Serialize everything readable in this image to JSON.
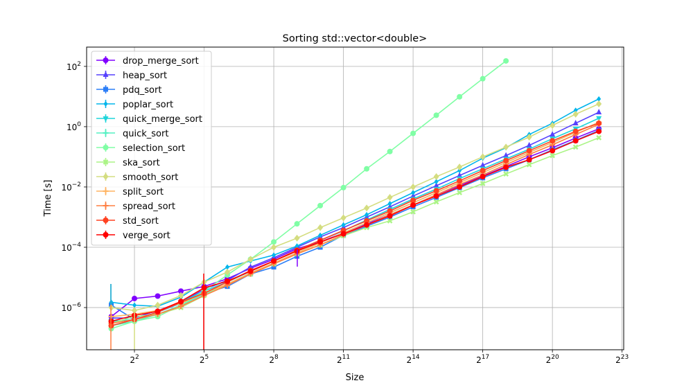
{
  "chart_data": {
    "type": "line",
    "title": "Sorting std::vector<double>",
    "xlabel": "Size",
    "ylabel": "Time [s]",
    "xscale": "log2",
    "yscale": "log10",
    "xlim_log2": [
      -0.06,
      23.07
    ],
    "ylim_log10": [
      -7.4,
      2.64
    ],
    "grid": true,
    "legend_position": "upper left",
    "x_ticks": [
      {
        "exp": 2,
        "label": "2^2"
      },
      {
        "exp": 5,
        "label": "2^5"
      },
      {
        "exp": 8,
        "label": "2^8"
      },
      {
        "exp": 11,
        "label": "2^11"
      },
      {
        "exp": 14,
        "label": "2^14"
      },
      {
        "exp": 17,
        "label": "2^17"
      },
      {
        "exp": 20,
        "label": "2^20"
      },
      {
        "exp": 23,
        "label": "2^23"
      }
    ],
    "y_ticks": [
      {
        "exp": -6,
        "label": "10^-6"
      },
      {
        "exp": -4,
        "label": "10^-4"
      },
      {
        "exp": -2,
        "label": "10^-2"
      },
      {
        "exp": 0,
        "label": "10^0"
      },
      {
        "exp": 2,
        "label": "10^2"
      }
    ],
    "x": [
      2,
      4,
      8,
      16,
      32,
      64,
      128,
      256,
      512,
      1024,
      2048,
      4096,
      8192,
      16384,
      32768,
      65536,
      131072,
      262144,
      524288,
      1048576,
      2097152,
      4194304
    ],
    "series": [
      {
        "name": "drop_merge_sort",
        "color": "#8000ff",
        "marker": "circle",
        "values": [
          5e-07,
          2e-06,
          2.4e-06,
          3.5e-06,
          5e-06,
          9e-06,
          2e-05,
          4e-05,
          9e-05,
          0.00015,
          0.0003,
          0.0006,
          0.0012,
          0.0025,
          0.0055,
          0.011,
          0.023,
          0.048,
          0.1,
          0.2,
          0.42,
          0.85
        ]
      },
      {
        "name": "heap_sort",
        "color": "#5641fd",
        "marker": "triangle",
        "values": [
          4.5e-07,
          4.5e-07,
          8e-07,
          1.5e-06,
          4e-06,
          8e-06,
          2.2e-05,
          4.5e-05,
          0.0001,
          0.00022,
          0.00045,
          0.001,
          0.0022,
          0.005,
          0.011,
          0.024,
          0.052,
          0.11,
          0.24,
          0.55,
          1.3,
          3.0
        ]
      },
      {
        "name": "pdq_sort",
        "color": "#2c7ef7",
        "marker": "square",
        "values": [
          1.2e-06,
          4e-07,
          7e-07,
          1.4e-06,
          3e-06,
          5e-06,
          1.3e-05,
          2.2e-05,
          5e-05,
          0.0001,
          0.00025,
          0.0005,
          0.001,
          0.0022,
          0.0045,
          0.0095,
          0.02,
          0.04,
          0.08,
          0.17,
          0.35,
          0.75
        ]
      },
      {
        "name": "poplar_sort",
        "color": "#00b5eb",
        "marker": "diamond-thin",
        "values": [
          1.5e-06,
          1.2e-06,
          1.1e-06,
          2.2e-06,
          7e-06,
          2.2e-05,
          3.5e-05,
          5.5e-05,
          0.00011,
          0.00025,
          0.00055,
          0.0012,
          0.0028,
          0.0065,
          0.015,
          0.035,
          0.09,
          0.2,
          0.55,
          1.3,
          3.5,
          8.3
        ]
      },
      {
        "name": "quick_merge_sort",
        "color": "#1ed5db",
        "marker": "triangle-down",
        "values": [
          3.5e-07,
          4e-07,
          7e-07,
          1.5e-06,
          3.5e-06,
          7e-06,
          1.6e-05,
          3.5e-05,
          8e-05,
          0.00017,
          0.00035,
          0.0008,
          0.0018,
          0.004,
          0.0085,
          0.019,
          0.04,
          0.085,
          0.18,
          0.4,
          0.85,
          1.9
        ]
      },
      {
        "name": "quick_sort",
        "color": "#52f0c2",
        "marker": "plus",
        "values": [
          2.5e-07,
          3.5e-07,
          6e-07,
          1.2e-06,
          2.8e-06,
          6e-06,
          1.4e-05,
          3e-05,
          6.5e-05,
          0.00014,
          0.0003,
          0.00065,
          0.0014,
          0.003,
          0.0065,
          0.014,
          0.03,
          0.065,
          0.14,
          0.3,
          0.65,
          1.4
        ]
      },
      {
        "name": "selection_sort",
        "color": "#80fea5",
        "marker": "circle",
        "values": [
          2e-07,
          3.5e-07,
          5e-07,
          1.2e-06,
          3.5e-06,
          1.2e-05,
          4e-05,
          0.00015,
          0.0006,
          0.0024,
          0.0095,
          0.04,
          0.15,
          0.6,
          2.4,
          9.8,
          39.0,
          152.0
        ]
      },
      {
        "name": "ska_sort",
        "color": "#abf486",
        "marker": "x",
        "values": [
          3e-07,
          5e-07,
          6e-07,
          1e-06,
          2.5e-06,
          6e-06,
          1.3e-05,
          2.8e-05,
          6e-05,
          0.00012,
          0.00024,
          0.00045,
          0.00075,
          0.0015,
          0.0032,
          0.0065,
          0.013,
          0.027,
          0.055,
          0.11,
          0.21,
          0.43
        ]
      },
      {
        "name": "smooth_sort",
        "color": "#d4dd80",
        "marker": "diamond",
        "values": [
          1e-06,
          8e-07,
          1.2e-06,
          2.5e-06,
          7e-06,
          1.5e-05,
          4e-05,
          0.0001,
          0.0002,
          0.00045,
          0.00095,
          0.002,
          0.0045,
          0.01,
          0.022,
          0.046,
          0.1,
          0.21,
          0.45,
          1.1,
          2.6,
          5.7
        ]
      },
      {
        "name": "split_sort",
        "color": "#ffb360",
        "marker": "plus",
        "values": [
          5e-07,
          6e-07,
          8e-07,
          1.4e-06,
          3e-06,
          6e-06,
          1.4e-05,
          3e-05,
          6.5e-05,
          0.00014,
          0.0003,
          0.00065,
          0.0014,
          0.003,
          0.0065,
          0.014,
          0.03,
          0.065,
          0.14,
          0.3,
          0.65,
          1.4
        ]
      },
      {
        "name": "spread_sort",
        "color": "#ff7e41",
        "marker": "plus",
        "values": [
          3e-07,
          4e-07,
          6e-07,
          1.1e-06,
          2.5e-06,
          5.5e-06,
          1.3e-05,
          2.8e-05,
          6e-05,
          0.00012,
          0.00026,
          0.00055,
          0.0012,
          0.0025,
          0.0055,
          0.012,
          0.025,
          0.055,
          0.12,
          0.25,
          0.55,
          1.2
        ]
      },
      {
        "name": "std_sort",
        "color": "#ff4121",
        "marker": "circle",
        "values": [
          2.5e-07,
          4e-07,
          7e-07,
          1.5e-06,
          3e-06,
          7e-06,
          1.7e-05,
          3.5e-05,
          8e-05,
          0.00017,
          0.00036,
          0.00075,
          0.0016,
          0.0036,
          0.0075,
          0.016,
          0.035,
          0.075,
          0.16,
          0.34,
          0.7,
          1.3
        ]
      },
      {
        "name": "verge_sort",
        "color": "#ff0000",
        "marker": "circle",
        "values": [
          3.5e-07,
          5.5e-07,
          7.5e-07,
          1.6e-06,
          4.5e-06,
          7.5e-06,
          1.6e-05,
          3.5e-05,
          7.5e-05,
          0.00015,
          0.00028,
          0.00055,
          0.0011,
          0.0025,
          0.005,
          0.01,
          0.022,
          0.045,
          0.08,
          0.16,
          0.34,
          0.7
        ]
      }
    ]
  }
}
